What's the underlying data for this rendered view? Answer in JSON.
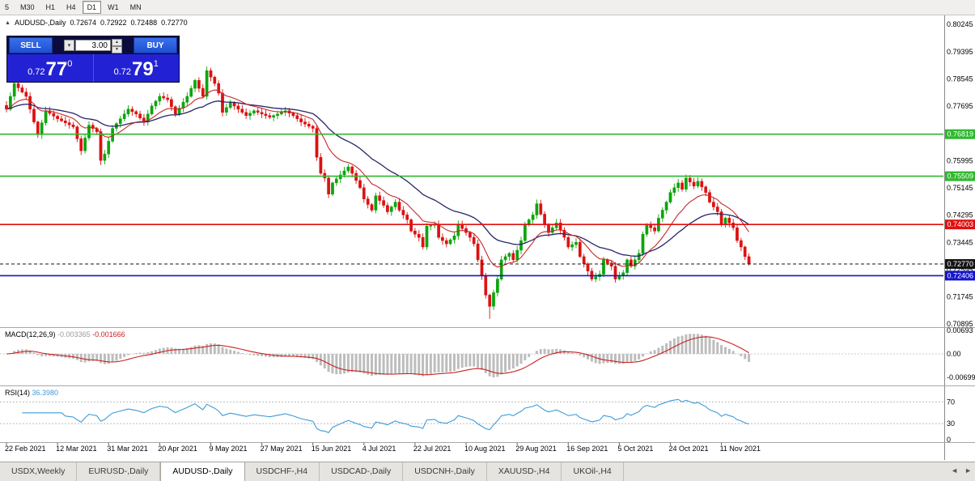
{
  "toolbar": {
    "timeframes": [
      {
        "label": "5",
        "active": false
      },
      {
        "label": "M30",
        "active": false
      },
      {
        "label": "H1",
        "active": false
      },
      {
        "label": "H4",
        "active": false
      },
      {
        "label": "D1",
        "active": true
      },
      {
        "label": "W1",
        "active": false
      },
      {
        "label": "MN",
        "active": false
      }
    ]
  },
  "symbol_header": {
    "collapse_icon": "▲",
    "title": "AUDUSD-,Daily",
    "open": "0.72674",
    "high": "0.72922",
    "low": "0.72488",
    "close": "0.72770"
  },
  "trade_panel": {
    "sell_label": "SELL",
    "buy_label": "BUY",
    "volume": "3.00",
    "sell_price": {
      "small": "0.72",
      "big": "77",
      "sup": "0"
    },
    "buy_price": {
      "small": "0.72",
      "big": "79",
      "sup": "1"
    }
  },
  "icons": {
    "volume_dropdown": "▾",
    "spin_up": "▲",
    "spin_down": "▼",
    "scroll_left": "◄",
    "scroll_right": "►"
  },
  "price_scale": {
    "labels": [
      "0.80245",
      "0.79395",
      "0.78545",
      "0.77695",
      "0.76845",
      "0.75995",
      "0.75145",
      "0.74295",
      "0.73445",
      "0.72595",
      "0.71745",
      "0.70895"
    ]
  },
  "levels": [
    {
      "label": "0.76819",
      "price": 0.76819,
      "color": "#2eb82e",
      "style": "solid"
    },
    {
      "label": "0.75509",
      "price": 0.75509,
      "color": "#2eb82e",
      "style": "solid"
    },
    {
      "label": "0.74003",
      "price": 0.74003,
      "color": "#e01010",
      "style": "solid"
    },
    {
      "label": "0.72770",
      "price": 0.7277,
      "color": "#151515",
      "style": "dashed",
      "current": true
    },
    {
      "label": "0.72406",
      "price": 0.72406,
      "color": "#1414cc",
      "style": "solid"
    }
  ],
  "chart_data": {
    "type": "candlestick",
    "title": "AUDUSD-,Daily",
    "current_bar": {
      "open": 0.72674,
      "high": 0.72922,
      "low": 0.72488,
      "close": 0.7277
    },
    "y_axis": {
      "min": 0.70895,
      "max": 0.80245,
      "tick_step": 0.0085
    },
    "x_axis_dates": [
      "22 Feb 2021",
      "12 Mar 2021",
      "31 Mar 2021",
      "20 Apr 2021",
      "9 May 2021",
      "27 May 2021",
      "15 Jun 2021",
      "4 Jul 2021",
      "22 Jul 2021",
      "10 Aug 2021",
      "29 Aug 2021",
      "16 Sep 2021",
      "5 Oct 2021",
      "24 Oct 2021",
      "11 Nov 2021"
    ],
    "num_candles": 190,
    "candles_per_date_tick": 13,
    "close_anchors": [
      [
        0,
        0.776
      ],
      [
        2,
        0.784
      ],
      [
        5,
        0.78
      ],
      [
        8,
        0.768
      ],
      [
        10,
        0.7755
      ],
      [
        13,
        0.773
      ],
      [
        17,
        0.7705
      ],
      [
        19,
        0.763
      ],
      [
        21,
        0.771
      ],
      [
        23,
        0.769
      ],
      [
        24,
        0.76
      ],
      [
        25,
        0.762
      ],
      [
        27,
        0.77
      ],
      [
        29,
        0.773
      ],
      [
        31,
        0.776
      ],
      [
        33,
        0.7745
      ],
      [
        35,
        0.772
      ],
      [
        37,
        0.777
      ],
      [
        39,
        0.78
      ],
      [
        41,
        0.779
      ],
      [
        43,
        0.7745
      ],
      [
        46,
        0.78
      ],
      [
        48,
        0.785
      ],
      [
        50,
        0.78
      ],
      [
        51,
        0.788
      ],
      [
        53,
        0.784
      ],
      [
        54,
        0.781
      ],
      [
        55,
        0.775
      ],
      [
        57,
        0.778
      ],
      [
        59,
        0.776
      ],
      [
        61,
        0.774
      ],
      [
        63,
        0.7755
      ],
      [
        65,
        0.7745
      ],
      [
        67,
        0.7735
      ],
      [
        69,
        0.7745
      ],
      [
        71,
        0.7755
      ],
      [
        73,
        0.774
      ],
      [
        75,
        0.772
      ],
      [
        78,
        0.77
      ],
      [
        79,
        0.761
      ],
      [
        80,
        0.756
      ],
      [
        81,
        0.7545
      ],
      [
        82,
        0.7495
      ],
      [
        83,
        0.753
      ],
      [
        85,
        0.7555
      ],
      [
        87,
        0.758
      ],
      [
        88,
        0.756
      ],
      [
        90,
        0.7515
      ],
      [
        91,
        0.748
      ],
      [
        93,
        0.7445
      ],
      [
        94,
        0.749
      ],
      [
        96,
        0.746
      ],
      [
        97,
        0.744
      ],
      [
        99,
        0.747
      ],
      [
        100,
        0.7445
      ],
      [
        102,
        0.7415
      ],
      [
        103,
        0.738
      ],
      [
        105,
        0.736
      ],
      [
        106,
        0.733
      ],
      [
        107,
        0.7395
      ],
      [
        109,
        0.74
      ],
      [
        110,
        0.736
      ],
      [
        112,
        0.734
      ],
      [
        114,
        0.7365
      ],
      [
        115,
        0.74
      ],
      [
        117,
        0.7375
      ],
      [
        118,
        0.736
      ],
      [
        119,
        0.734
      ],
      [
        120,
        0.729
      ],
      [
        121,
        0.724
      ],
      [
        122,
        0.718
      ],
      [
        123,
        0.7145
      ],
      [
        125,
        0.723
      ],
      [
        126,
        0.729
      ],
      [
        128,
        0.731
      ],
      [
        129,
        0.729
      ],
      [
        131,
        0.735
      ],
      [
        132,
        0.74
      ],
      [
        134,
        0.743
      ],
      [
        135,
        0.7465
      ],
      [
        137,
        0.74
      ],
      [
        138,
        0.7375
      ],
      [
        140,
        0.7405
      ],
      [
        142,
        0.736
      ],
      [
        143,
        0.733
      ],
      [
        145,
        0.7345
      ],
      [
        146,
        0.73
      ],
      [
        148,
        0.7255
      ],
      [
        149,
        0.723
      ],
      [
        151,
        0.7245
      ],
      [
        152,
        0.729
      ],
      [
        154,
        0.727
      ],
      [
        155,
        0.723
      ],
      [
        157,
        0.725
      ],
      [
        158,
        0.729
      ],
      [
        159,
        0.727
      ],
      [
        161,
        0.731
      ],
      [
        162,
        0.737
      ],
      [
        163,
        0.74
      ],
      [
        165,
        0.738
      ],
      [
        166,
        0.742
      ],
      [
        168,
        0.747
      ],
      [
        169,
        0.75
      ],
      [
        171,
        0.753
      ],
      [
        172,
        0.751
      ],
      [
        173,
        0.7545
      ],
      [
        175,
        0.752
      ],
      [
        176,
        0.7535
      ],
      [
        178,
        0.75
      ],
      [
        179,
        0.747
      ],
      [
        181,
        0.744
      ],
      [
        182,
        0.74
      ],
      [
        183,
        0.742
      ],
      [
        185,
        0.739
      ],
      [
        186,
        0.735
      ],
      [
        187,
        0.733
      ],
      [
        188,
        0.73
      ],
      [
        189,
        0.7277
      ]
    ],
    "wick_overrides": {
      "24": {
        "low": 0.7586
      },
      "51": {
        "high": 0.7893
      },
      "123": {
        "low": 0.7106
      },
      "135": {
        "high": 0.7478
      },
      "173": {
        "high": 0.7556
      }
    },
    "up_color": "#0da50d",
    "down_color": "#dd1111",
    "ma_fast": {
      "period": 12,
      "color": "#c62828"
    },
    "ma_slow": {
      "period": 30,
      "color": "#26266b"
    }
  },
  "macd": {
    "label": "MACD(12,26,9)",
    "fast": 12,
    "slow": 26,
    "signal": 9,
    "value_main": "-0.003365",
    "value_signal": "-0.001666",
    "scale_labels": [
      "0.00693",
      "0.00",
      "-0.00699"
    ],
    "histogram_color": "#bdbdbd",
    "signal_color": "#cc2020"
  },
  "rsi": {
    "label": "RSI(14)",
    "period": 14,
    "value": "36.3980",
    "scale_labels": [
      "70",
      "30",
      "0"
    ],
    "levels": [
      70,
      30
    ],
    "line_color": "#3f9bd8"
  },
  "tabs": {
    "items": [
      {
        "label": "USDX,Weekly",
        "active": false
      },
      {
        "label": "EURUSD-,Daily",
        "active": false
      },
      {
        "label": "AUDUSD-,Daily",
        "active": true
      },
      {
        "label": "USDCHF-,H4",
        "active": false
      },
      {
        "label": "USDCAD-,Daily",
        "active": false
      },
      {
        "label": "USDCNH-,Daily",
        "active": false
      },
      {
        "label": "XAUUSD-,H4",
        "active": false
      },
      {
        "label": "UKOil-,H4",
        "active": false
      }
    ]
  }
}
